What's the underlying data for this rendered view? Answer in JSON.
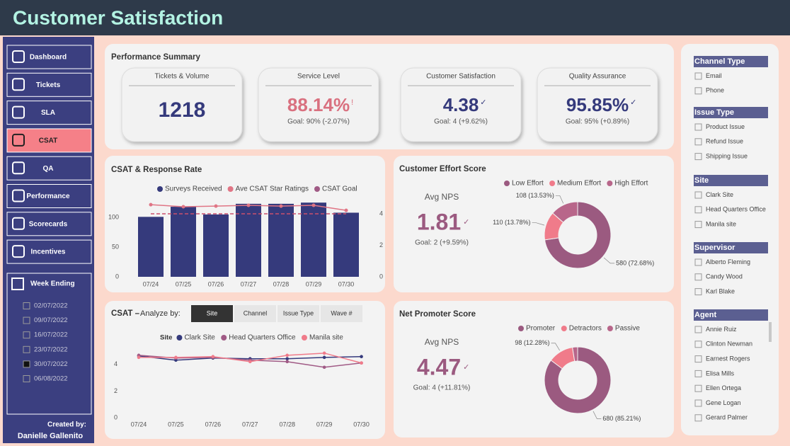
{
  "header": {
    "title": "Customer Satisfaction"
  },
  "nav": {
    "items": [
      "Dashboard",
      "Tickets",
      "SLA",
      "CSAT",
      "QA",
      "Performance",
      "Scorecards",
      "Incentives"
    ],
    "active": 3
  },
  "week_filter": {
    "title": "Week Ending",
    "options": [
      "02/07/2022",
      "09/07/2022",
      "16/07/2022",
      "23/07/2022",
      "30/07/2022",
      "06/08/2022"
    ],
    "selected": 4
  },
  "credit": {
    "label": "Created by:",
    "name": "Danielle Gallenito"
  },
  "summary": {
    "title": "Performance Summary",
    "cards": [
      {
        "title": "Tickets & Volume",
        "value": "1218",
        "color": "#353a7c"
      },
      {
        "title": "Service Level",
        "value": "88.14%",
        "status": "!",
        "goal": "Goal: 90% (-2.07%)",
        "color": "#d9707f"
      },
      {
        "title": "Customer Satisfaction",
        "value": "4.38",
        "status": "✓",
        "goal": "Goal: 4 (+9.62%)",
        "color": "#353a7c"
      },
      {
        "title": "Quality Assurance",
        "value": "95.85%",
        "status": "✓",
        "goal": "Goal: 95% (+0.89%)",
        "color": "#353a7c"
      }
    ]
  },
  "csat_response": {
    "type": "bar",
    "title": "CSAT & Response Rate",
    "categories": [
      "07/24",
      "07/25",
      "07/26",
      "07/27",
      "07/28",
      "07/29",
      "07/30"
    ],
    "series": [
      {
        "name": "Surveys Received",
        "color": "#353a7c",
        "type": "bar",
        "values": [
          101,
          118,
          105,
          123,
          123,
          125,
          108
        ]
      },
      {
        "name": "Ave CSAT Star Ratings",
        "color": "#e07585",
        "type": "line",
        "axis": "y2",
        "values": [
          4.58,
          4.45,
          4.49,
          4.54,
          4.49,
          4.54,
          4.22
        ]
      },
      {
        "name": "CSAT Goal",
        "color": "#a05a85",
        "line_color": "#c9506c",
        "type": "dashed",
        "axis": "y2",
        "values": [
          4,
          4,
          4,
          4,
          4,
          4,
          4
        ]
      }
    ],
    "ylim": [
      0,
      130
    ],
    "yticks": [
      0,
      50,
      100
    ],
    "y2lim": [
      0,
      4.9
    ],
    "y2ticks": [
      0,
      2,
      4
    ]
  },
  "csat_analyze": {
    "type": "line",
    "title": "CSAT –",
    "analyze_label": "Analyze by:",
    "options": [
      "Site",
      "Channel",
      "Issue Type",
      "Wave #"
    ],
    "selected": 0,
    "legend_title": "Site",
    "categories": [
      "07/24",
      "07/25",
      "07/26",
      "07/27",
      "07/28",
      "07/29",
      "07/30"
    ],
    "series": [
      {
        "name": "Clark Site",
        "color": "#353a7c",
        "values": [
          4.64,
          4.32,
          4.48,
          4.43,
          4.43,
          4.53,
          4.59
        ]
      },
      {
        "name": "Head Quarters Office",
        "color": "#a05a85",
        "values": [
          4.69,
          4.48,
          4.53,
          4.32,
          4.21,
          3.79,
          4.11
        ]
      },
      {
        "name": "Manila site",
        "color": "#f07b8a",
        "values": [
          4.53,
          4.53,
          4.59,
          4.21,
          4.69,
          4.85,
          4.11
        ]
      }
    ],
    "ylim": [
      0,
      5
    ],
    "yticks": [
      0,
      2,
      4
    ]
  },
  "effort": {
    "type": "pie",
    "title": "Customer Effort Score",
    "kpi_label": "Avg NPS",
    "kpi": "1.81",
    "status": "✓",
    "goal": "Goal: 2 (+9.59%)",
    "labels": [
      "Low Effort",
      "Medium Effort",
      "High Effort"
    ],
    "colors": [
      "#9b5a80",
      "#f07b8a",
      "#b8668a"
    ],
    "values": [
      580,
      110,
      108
    ],
    "value_labels": [
      "580 (72.68%)",
      "110 (13.78%)",
      "108 (13.53%)"
    ]
  },
  "nps": {
    "type": "pie",
    "title": "Net Promoter Score",
    "kpi_label": "Avg NPS",
    "kpi": "4.47",
    "status": "✓",
    "goal": "Goal: 4 (+11.81%)",
    "labels": [
      "Promoter",
      "Detractors",
      "Passive"
    ],
    "colors": [
      "#9b5a80",
      "#f07b8a",
      "#b8668a"
    ],
    "values": [
      680,
      98,
      20
    ],
    "value_labels": [
      "680 (85.21%)",
      "98 (12.28%)",
      null
    ]
  },
  "filters": [
    {
      "title": "Channel Type",
      "options": [
        "Email",
        "Phone"
      ]
    },
    {
      "title": "Issue Type",
      "options": [
        "Product Issue",
        "Refund Issue",
        "Shipping Issue"
      ]
    },
    {
      "title": "Site",
      "options": [
        "Clark Site",
        "Head Quarters Office",
        "Manila site"
      ]
    },
    {
      "title": "Supervisor",
      "options": [
        "Alberto Fleming",
        "Candy Wood",
        "Karl Blake"
      ]
    },
    {
      "title": "Agent",
      "options": [
        "Annie Ruiz",
        "Clinton Newman",
        "Earnest Rogers",
        "Elisa Mills",
        "Ellen Ortega",
        "Gene Logan",
        "Gerard Palmer"
      ]
    }
  ]
}
